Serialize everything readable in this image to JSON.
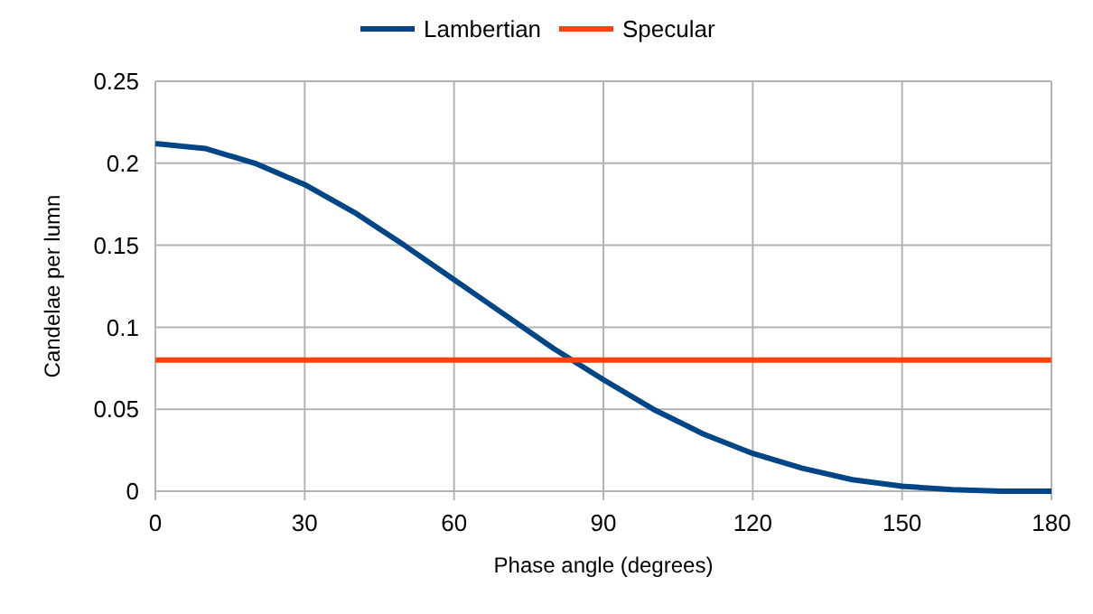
{
  "chart_data": {
    "type": "line",
    "xlabel": "Phase angle (degrees)",
    "ylabel": "Candelae per lumn",
    "x": [
      0,
      10,
      20,
      30,
      40,
      50,
      60,
      70,
      80,
      90,
      100,
      110,
      120,
      130,
      140,
      150,
      160,
      170,
      180
    ],
    "series": [
      {
        "name": "Lambertian",
        "color": "#004586",
        "values": [
          0.212,
          0.209,
          0.2,
          0.187,
          0.17,
          0.15,
          0.129,
          0.108,
          0.087,
          0.068,
          0.05,
          0.035,
          0.023,
          0.014,
          0.007,
          0.003,
          0.001,
          0.0,
          0.0
        ]
      },
      {
        "name": "Specular",
        "color": "#ff420e",
        "values": [
          0.08,
          0.08,
          0.08,
          0.08,
          0.08,
          0.08,
          0.08,
          0.08,
          0.08,
          0.08,
          0.08,
          0.08,
          0.08,
          0.08,
          0.08,
          0.08,
          0.08,
          0.08,
          0.08
        ]
      }
    ],
    "xlim": [
      0,
      180
    ],
    "xticks": [
      0,
      30,
      60,
      90,
      120,
      150,
      180
    ],
    "ylim": [
      0,
      0.25
    ],
    "yticks": [
      0,
      0.05,
      0.1,
      0.15,
      0.2,
      0.25
    ],
    "grid": true,
    "legend": "top",
    "marker": "none",
    "line_style": "solid"
  }
}
